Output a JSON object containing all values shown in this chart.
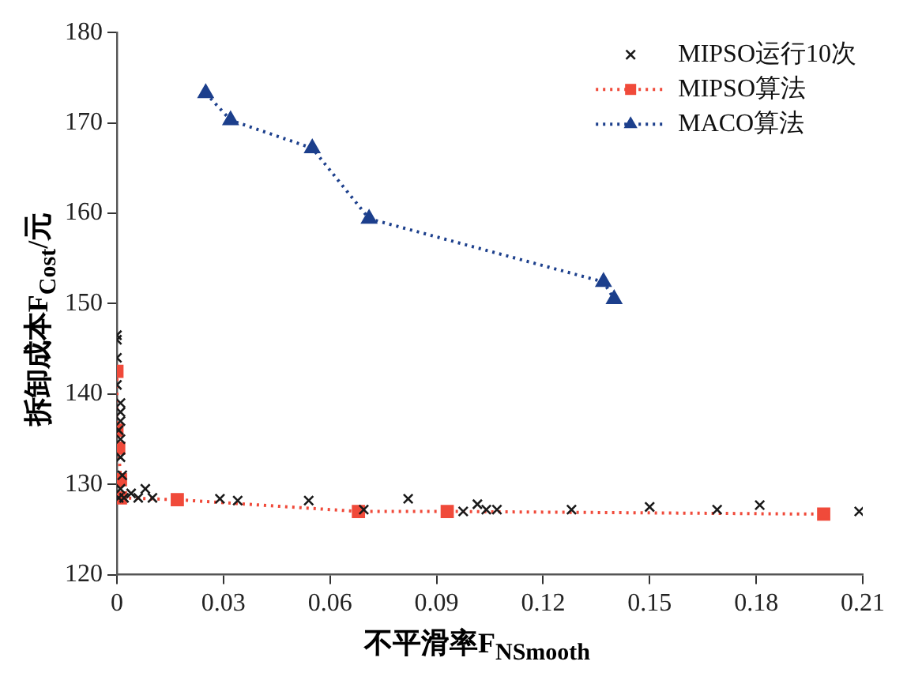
{
  "chart_data": {
    "type": "scatter",
    "xlabel": "不平滑率F$_{NSmooth}$",
    "ylabel": "拆卸成本F$_{Cost}$/元",
    "xlim": [
      0,
      0.21
    ],
    "ylim": [
      120,
      180
    ],
    "xticks": [
      0,
      0.03,
      0.06,
      0.09,
      0.12,
      0.15,
      0.18,
      0.21
    ],
    "yticks": [
      120,
      130,
      140,
      150,
      160,
      170,
      180
    ],
    "grid": false,
    "legend": "top right",
    "series": [
      {
        "name": "MIPSO运行10次",
        "type": "scatter",
        "marker": "cross",
        "color": "#1a1a1a",
        "x": [
          0,
          0,
          0,
          0,
          0.001,
          0.001,
          0.001,
          0.0005,
          0.001,
          0.001,
          0.0015,
          0.001,
          0.0005,
          0.002,
          0.004,
          0.006,
          0.008,
          0.01,
          0.029,
          0.034,
          0.054,
          0.0695,
          0.082,
          0.0975,
          0.1015,
          0.104,
          0.107,
          0.128,
          0.15,
          0.169,
          0.181,
          0.209
        ],
        "values": [
          146.5,
          146,
          144,
          141,
          139,
          138,
          137,
          136,
          135,
          133,
          131,
          129.5,
          128.5,
          128.5,
          129,
          128.5,
          129.5,
          128.5,
          128.4,
          128.2,
          128.2,
          127.2,
          128.4,
          127,
          127.8,
          127.2,
          127.2,
          127.2,
          127.5,
          127.2,
          127.7,
          127
        ]
      },
      {
        "name": "MIPSO算法",
        "type": "line",
        "marker": "square",
        "line_style": "dotted",
        "color": "#f04a3a",
        "x": [
          0,
          0,
          0.0005,
          0.001,
          0.001,
          0.017,
          0.068,
          0.093,
          0.199
        ],
        "values": [
          142.5,
          136,
          134,
          130.5,
          128.5,
          128.3,
          127,
          127,
          126.7
        ]
      },
      {
        "name": "MACO算法",
        "type": "line",
        "marker": "triangle",
        "line_style": "dotted",
        "color": "#1c3f8c",
        "x": [
          0.025,
          0.032,
          0.055,
          0.071,
          0.137,
          0.14
        ],
        "values": [
          173.3,
          170.3,
          167.2,
          159.4,
          152.4,
          150.5
        ]
      }
    ]
  }
}
